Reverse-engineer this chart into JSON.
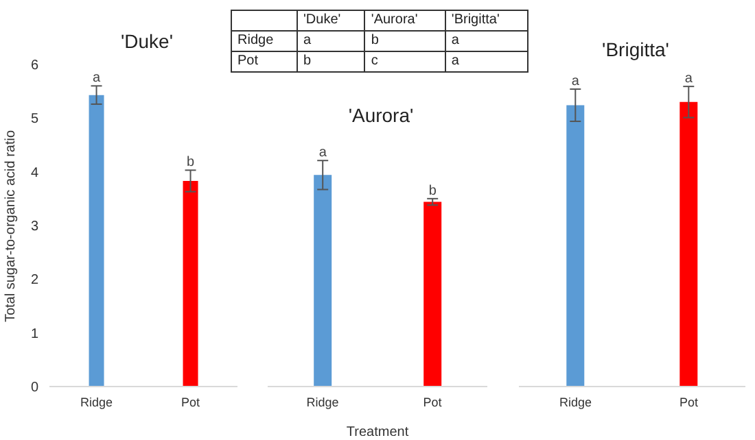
{
  "chart_data": [
    {
      "type": "other",
      "categories": [
        "'Duke'",
        "'Aurora'",
        "'Brigitta'"
      ],
      "y_categories": [
        "Ridge",
        "Pot"
      ],
      "cell_labels": [
        [
          "a",
          "b",
          "a"
        ],
        [
          "b",
          "c",
          "a"
        ]
      ]
    },
    {
      "type": "bar",
      "title": "'Duke'",
      "ylabel": "Total sugar-to-organic acid ratio",
      "categories": [
        "Ridge",
        "Pot"
      ],
      "values": [
        5.43,
        3.83
      ],
      "colors": [
        "#5b9bd5",
        "#ff0000"
      ],
      "errors": [
        0.17,
        0.2
      ],
      "value_labels": [
        "a",
        "b"
      ],
      "ylim": [
        0,
        6
      ],
      "yticks": [
        0,
        1,
        2,
        3,
        4,
        5,
        6
      ]
    },
    {
      "type": "bar",
      "title": "'Aurora'",
      "xlabel": "Treatment",
      "categories": [
        "Ridge",
        "Pot"
      ],
      "values": [
        3.94,
        3.44
      ],
      "colors": [
        "#5b9bd5",
        "#ff0000"
      ],
      "errors": [
        0.27,
        0.06
      ],
      "value_labels": [
        "a",
        "b"
      ],
      "ylim": [
        0,
        6
      ],
      "yticks": [
        0,
        1,
        2,
        3,
        4,
        5,
        6
      ],
      "tick_labels": "x"
    },
    {
      "type": "bar",
      "title": "'Brigitta'",
      "categories": [
        "Ridge",
        "Pot"
      ],
      "values": [
        5.24,
        5.3
      ],
      "colors": [
        "#5b9bd5",
        "#ff0000"
      ],
      "errors": [
        0.3,
        0.29
      ],
      "value_labels": [
        "a",
        "a"
      ],
      "ylim": [
        0,
        6
      ],
      "yticks": [
        0,
        1,
        2,
        3,
        4,
        5,
        6
      ],
      "tick_labels": "x"
    }
  ]
}
